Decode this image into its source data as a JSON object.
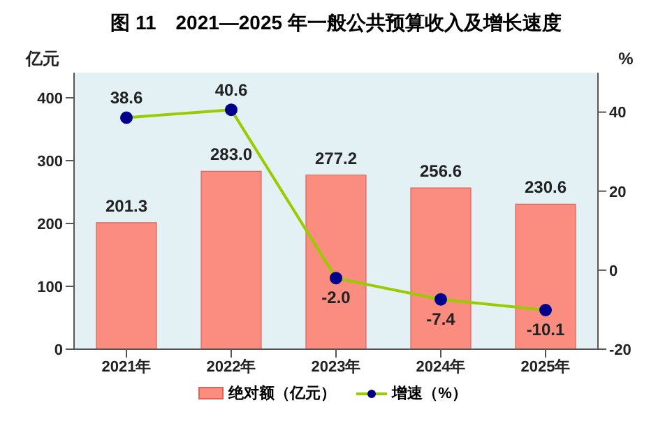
{
  "chart_data": {
    "type": "bar",
    "title": "图 11　2021—2025 年一般公共预算收入及增长速度",
    "ylabel": "亿元",
    "y2label": "%",
    "categories": [
      "2021年",
      "2022年",
      "2023年",
      "2024年",
      "2025年"
    ],
    "series": [
      {
        "name": "绝对额（亿元）",
        "color": "#fa8c80",
        "values": [
          201.3,
          283.0,
          277.2,
          256.6,
          230.6
        ],
        "value_labels": [
          "201.3",
          "283.0",
          "277.2",
          "256.6",
          "230.6"
        ]
      },
      {
        "name": "增速（%）",
        "type": "line",
        "axis": "y2",
        "color": "#99cc00",
        "marker": "circle",
        "values": [
          38.6,
          40.6,
          -2.0,
          -7.4,
          -10.1
        ],
        "value_labels": [
          "38.6",
          "40.6",
          "-2.0",
          "-7.4",
          "-10.1"
        ]
      }
    ],
    "ylim": [
      0,
      440
    ],
    "yticks": [
      0,
      100,
      200,
      300,
      400
    ],
    "y2lim": [
      -20,
      50
    ],
    "y2ticks": [
      -20,
      0,
      20,
      40
    ],
    "legend": "bottom"
  }
}
